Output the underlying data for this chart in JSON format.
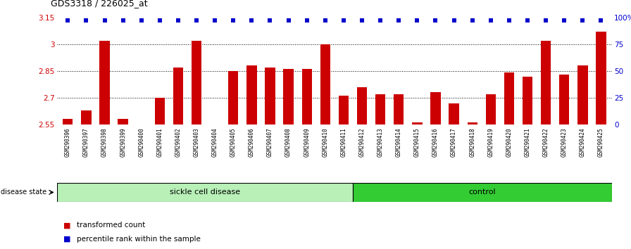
{
  "title": "GDS3318 / 226025_at",
  "samples": [
    "GSM290396",
    "GSM290397",
    "GSM290398",
    "GSM290399",
    "GSM290400",
    "GSM290401",
    "GSM290402",
    "GSM290403",
    "GSM290404",
    "GSM290405",
    "GSM290406",
    "GSM290407",
    "GSM290408",
    "GSM290409",
    "GSM290410",
    "GSM290411",
    "GSM290412",
    "GSM290413",
    "GSM290414",
    "GSM290415",
    "GSM290416",
    "GSM290417",
    "GSM290418",
    "GSM290419",
    "GSM290420",
    "GSM290421",
    "GSM290422",
    "GSM290423",
    "GSM290424",
    "GSM290425"
  ],
  "bar_values": [
    2.58,
    2.63,
    3.02,
    2.58,
    2.55,
    2.7,
    2.87,
    3.02,
    2.55,
    2.85,
    2.88,
    2.87,
    2.86,
    2.86,
    3.0,
    2.71,
    2.76,
    2.72,
    2.72,
    2.56,
    2.73,
    2.67,
    2.56,
    2.72,
    2.84,
    2.82,
    3.02,
    2.83,
    2.88,
    3.07
  ],
  "percentile_values": [
    97,
    97,
    97,
    97,
    97,
    97,
    97,
    97,
    97,
    97,
    97,
    97,
    97,
    97,
    97,
    97,
    97,
    97,
    97,
    97,
    97,
    97,
    97,
    97,
    97,
    97,
    97,
    97,
    97,
    97
  ],
  "sickle_count": 16,
  "control_count": 14,
  "bar_color": "#cc0000",
  "percentile_color": "#0000cc",
  "ylim_left": [
    2.55,
    3.15
  ],
  "ylim_right": [
    0,
    100
  ],
  "yticks_left": [
    2.55,
    2.7,
    2.85,
    3.0,
    3.15
  ],
  "yticks_right": [
    0,
    25,
    50,
    75,
    100
  ],
  "ytick_labels_left": [
    "2.55",
    "2.7",
    "2.85",
    "3",
    "3.15"
  ],
  "ytick_labels_right": [
    "0",
    "25",
    "50",
    "75",
    "100%"
  ],
  "sickle_color": "#b8f0b8",
  "control_color": "#33cc33",
  "label_color_left": "#cc0000",
  "label_color_right": "#0000cc",
  "tick_bg_color": "#cccccc",
  "disease_state_label": "disease state",
  "sickle_label": "sickle cell disease",
  "control_label": "control",
  "legend_bar_label": "transformed count",
  "legend_pct_label": "percentile rank within the sample",
  "gridlines": [
    2.7,
    2.85,
    3.0
  ]
}
